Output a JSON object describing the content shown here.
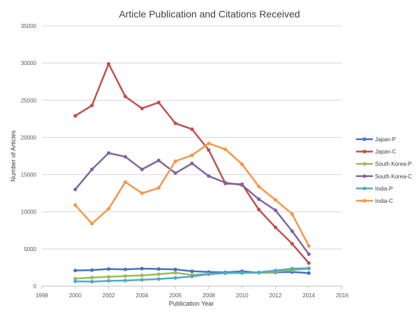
{
  "chart_data": {
    "type": "line",
    "title": "Article Publication and Citations Received",
    "xlabel": "Publication Year",
    "ylabel": "Number of Articles",
    "xlim": [
      1998,
      2016
    ],
    "ylim": [
      0,
      35000
    ],
    "xticks": [
      1998,
      2000,
      2002,
      2004,
      2006,
      2008,
      2010,
      2012,
      2014,
      2016
    ],
    "yticks": [
      0,
      5000,
      10000,
      15000,
      20000,
      25000,
      30000,
      35000
    ],
    "grid": true,
    "legend_position": "right",
    "x": [
      2000,
      2001,
      2002,
      2003,
      2004,
      2005,
      2006,
      2007,
      2008,
      2009,
      2010,
      2011,
      2012,
      2013,
      2014
    ],
    "series": [
      {
        "name": "Japan-P",
        "color": "#4472C4",
        "values": [
          2100,
          2150,
          2300,
          2250,
          2350,
          2300,
          2250,
          2000,
          1900,
          1850,
          2000,
          1800,
          1850,
          1900,
          1750
        ]
      },
      {
        "name": "Japan-C",
        "color": "#C0504D",
        "values": [
          22900,
          24300,
          29900,
          25500,
          23900,
          24700,
          21900,
          21100,
          18300,
          13800,
          13700,
          10300,
          7900,
          5700,
          3100
        ]
      },
      {
        "name": "South Korea-P",
        "color": "#9BBB59",
        "values": [
          1000,
          1150,
          1250,
          1350,
          1450,
          1600,
          1800,
          1500,
          1650,
          1750,
          1750,
          1800,
          1950,
          2150,
          2350
        ]
      },
      {
        "name": "South Korea-C",
        "color": "#8064A2",
        "values": [
          13000,
          15700,
          17900,
          17400,
          15700,
          16900,
          15200,
          16500,
          14800,
          13900,
          13600,
          11700,
          10200,
          7400,
          4300
        ]
      },
      {
        "name": "India-P",
        "color": "#4BACC6",
        "values": [
          650,
          600,
          700,
          750,
          850,
          950,
          1100,
          1300,
          1600,
          1750,
          1800,
          1850,
          2100,
          2350,
          2400
        ]
      },
      {
        "name": "India-C",
        "color": "#F79646",
        "values": [
          10900,
          8400,
          10400,
          14000,
          12500,
          13200,
          16800,
          17600,
          19200,
          18400,
          16400,
          13400,
          11600,
          9700,
          5400
        ]
      }
    ]
  }
}
